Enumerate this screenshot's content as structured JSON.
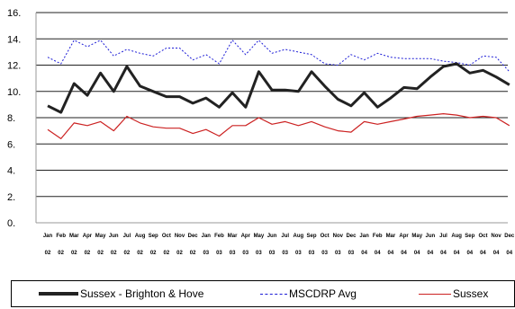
{
  "chart_data": {
    "type": "line",
    "title": "",
    "xlabel": "",
    "ylabel": "",
    "ylim": [
      0,
      16
    ],
    "yticks": [
      "0.",
      "2.",
      "4.",
      "6.",
      "8.",
      "10.",
      "12.",
      "14.",
      "16."
    ],
    "grid": "horizontal",
    "legend_position": "bottom",
    "x_months": [
      "Jan",
      "Feb",
      "Mar",
      "Apr",
      "May",
      "Jun",
      "Jul",
      "Aug",
      "Sep",
      "Oct",
      "Nov",
      "Dec",
      "Jan",
      "Feb",
      "Mar",
      "Apr",
      "May",
      "Jun",
      "Jul",
      "Aug",
      "Sep",
      "Oct",
      "Nov",
      "Dec",
      "Jan",
      "Feb",
      "Mar",
      "Apr",
      "May",
      "Jun",
      "Jul",
      "Aug",
      "Sep",
      "Oct",
      "Nov",
      "Dec"
    ],
    "x_years": [
      "02",
      "02",
      "02",
      "02",
      "02",
      "02",
      "02",
      "02",
      "02",
      "02",
      "02",
      "02",
      "03",
      "03",
      "03",
      "03",
      "03",
      "03",
      "03",
      "03",
      "03",
      "03",
      "03",
      "03",
      "04",
      "04",
      "04",
      "04",
      "04",
      "04",
      "04",
      "04",
      "04",
      "04",
      "04",
      "04"
    ],
    "series": [
      {
        "name": "Sussex - Brighton & Hove",
        "color": "#222222",
        "style": "solid-thick",
        "values": [
          8.9,
          8.4,
          10.6,
          9.7,
          11.4,
          10.0,
          11.9,
          10.4,
          10.0,
          9.6,
          9.6,
          9.1,
          9.5,
          8.8,
          9.9,
          8.8,
          11.5,
          10.1,
          10.1,
          10.0,
          11.5,
          10.4,
          9.4,
          8.9,
          9.9,
          8.8,
          9.5,
          10.3,
          10.2,
          11.1,
          11.9,
          12.1,
          11.4,
          11.6,
          11.1,
          10.5
        ]
      },
      {
        "name": "MSCDRP Avg",
        "color": "#1c1cd6",
        "style": "dashed",
        "values": [
          12.6,
          12.1,
          13.9,
          13.4,
          13.9,
          12.7,
          13.2,
          12.9,
          12.7,
          13.3,
          13.3,
          12.4,
          12.8,
          12.1,
          13.9,
          12.8,
          13.9,
          12.9,
          13.2,
          13.0,
          12.8,
          12.1,
          12.0,
          12.8,
          12.4,
          12.9,
          12.6,
          12.5,
          12.5,
          12.5,
          12.3,
          12.2,
          12.0,
          12.7,
          12.6,
          11.5
        ]
      },
      {
        "name": "Sussex",
        "color": "#cc2222",
        "style": "solid",
        "values": [
          7.1,
          6.4,
          7.6,
          7.4,
          7.7,
          7.0,
          8.1,
          7.6,
          7.3,
          7.2,
          7.2,
          6.8,
          7.1,
          6.6,
          7.4,
          7.4,
          8.0,
          7.5,
          7.7,
          7.4,
          7.7,
          7.3,
          7.0,
          6.9,
          7.7,
          7.5,
          7.7,
          7.9,
          8.1,
          8.2,
          8.3,
          8.2,
          8.0,
          8.1,
          8.0,
          7.4
        ]
      }
    ]
  }
}
